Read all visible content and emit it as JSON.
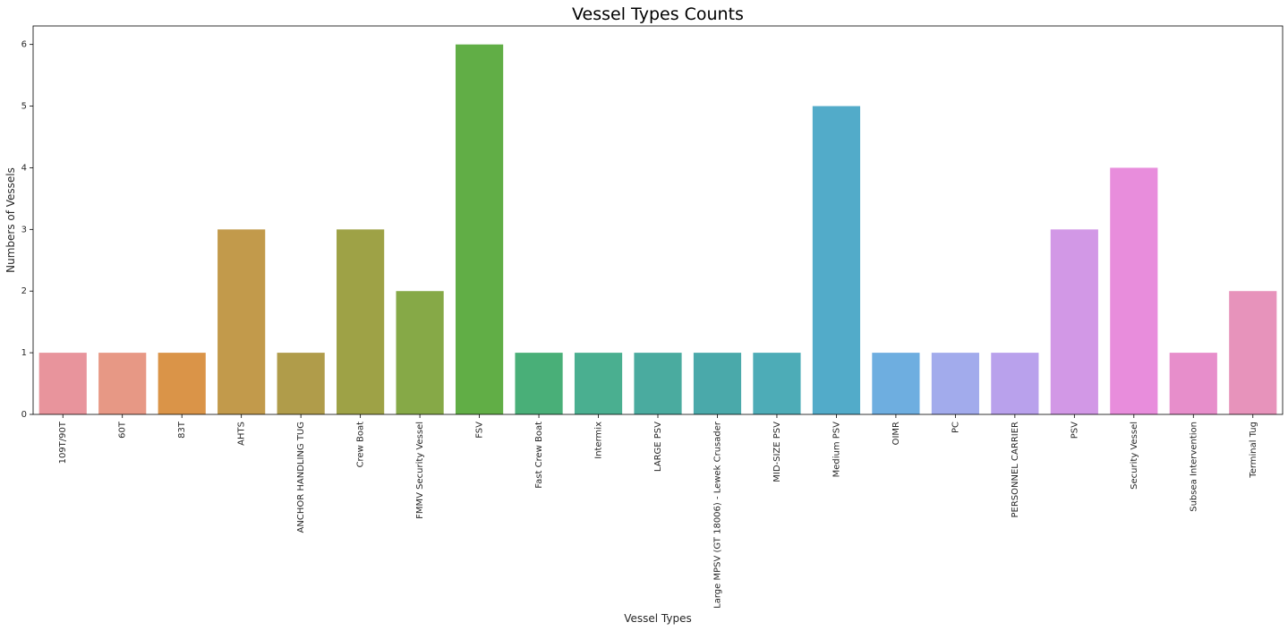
{
  "chart_data": {
    "type": "bar",
    "title": "Vessel Types Counts",
    "xlabel": "Vessel Types",
    "ylabel": "Numbers of Vessels",
    "ylim": [
      0,
      6.3
    ],
    "yticks": [
      0,
      1,
      2,
      3,
      4,
      5,
      6
    ],
    "grid": false,
    "categories": [
      "109T/90T",
      "60T",
      "83T",
      "AHTS",
      "ANCHOR HANDLING TUG",
      "Crew Boat",
      "FMMV Security Vessel",
      "FSV",
      "Fast Crew Boat",
      "Intermix",
      "LARGE PSV",
      "Large MPSV (GT 18006) -  Lewek Crusader",
      "MID-SIZE PSV",
      "Medium PSV",
      "OIMR",
      "PC",
      "PERSONNEL CARRIER",
      "PSV",
      "Security Vessel",
      "Subsea Intervention",
      "Terminal Tug"
    ],
    "values": [
      1,
      1,
      1,
      3,
      1,
      3,
      2,
      6,
      1,
      1,
      1,
      1,
      1,
      5,
      1,
      1,
      1,
      3,
      4,
      1,
      2
    ],
    "colors": [
      "#e8949c",
      "#e79885",
      "#da9448",
      "#c29a4b",
      "#b09c4a",
      "#9ea246",
      "#86a947",
      "#61ae46",
      "#49af78",
      "#4aaf90",
      "#4aab9f",
      "#4aa9aa",
      "#4dacb7",
      "#52abc9",
      "#6eaee0",
      "#a2abec",
      "#b9a1ec",
      "#d298e6",
      "#e88ddc",
      "#e78ecb",
      "#e793bb"
    ]
  }
}
